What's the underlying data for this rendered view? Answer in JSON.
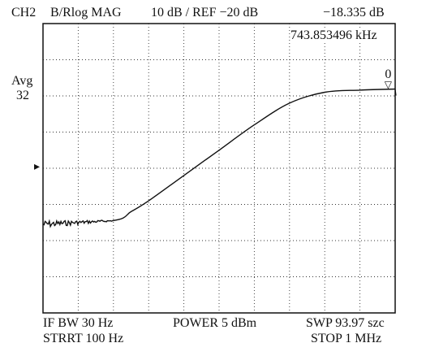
{
  "header": {
    "channel": "CH2",
    "format": "B/Rlog MAG",
    "scale": "10 dB / REF −20 dB",
    "marker_value": "−18.335 dB"
  },
  "marker": {
    "frequency": "743.853496 kHz",
    "label": "0",
    "symbol": "▽"
  },
  "side": {
    "avg_label": "Avg",
    "avg_count": "32",
    "ref_pointer": "▸"
  },
  "footer": {
    "if_bw": "IF BW 30 Hz",
    "power": "POWER 5 dBm",
    "sweep": "SWP 93.97 szc",
    "start": "STRRT 100 Hz",
    "stop": "STOP 1 MHz"
  },
  "chart_data": {
    "type": "line",
    "x": [
      100,
      200000,
      250000,
      300000,
      400000,
      500000,
      600000,
      700000,
      800000,
      900000,
      1000000
    ],
    "y": [
      -55.5,
      -54.5,
      -52,
      -49,
      -42,
      -35,
      -28,
      -22,
      -19,
      -18.4,
      -18.1
    ],
    "ylim": [
      -80,
      0
    ],
    "grid": true,
    "reference_level_db": -20,
    "divisions": {
      "x": 10,
      "y": 8
    }
  }
}
